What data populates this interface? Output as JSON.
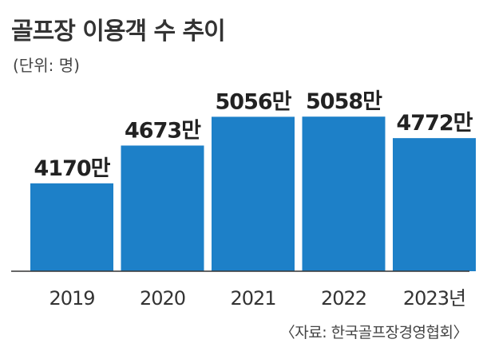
{
  "colors": {
    "bar": "#1d80c8",
    "axis": "#333333"
  },
  "chart_data": {
    "type": "bar",
    "title": "골프장 이용객 수 추이",
    "unit_label": "(단위: 명)",
    "source": "〈자료: 한국골프장경영협회〉",
    "categories": [
      "2019",
      "2020",
      "2021",
      "2022",
      "2023년"
    ],
    "values": [
      4170,
      4673,
      5056,
      5058,
      4772
    ],
    "value_labels": [
      "4170만",
      "4673만",
      "5056만",
      "5058만",
      "4772만"
    ],
    "ylim": [
      3000,
      5400
    ],
    "grid": false,
    "legend": "none"
  }
}
